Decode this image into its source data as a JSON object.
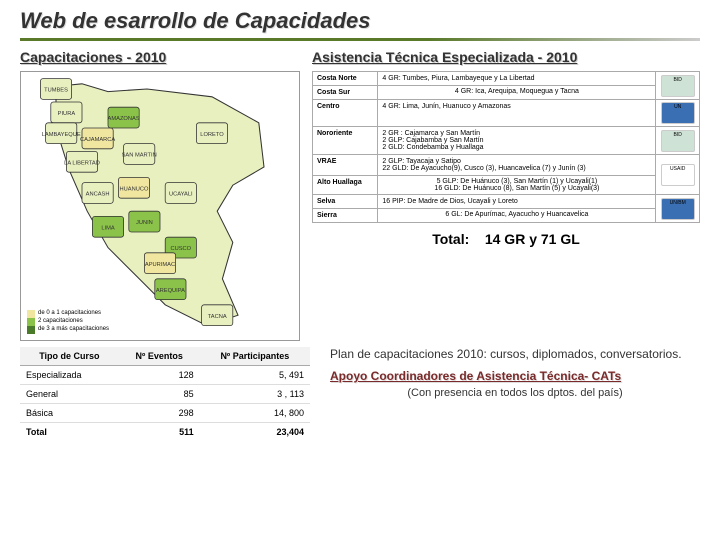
{
  "title": "Web de esarrollo de Capacidades",
  "left_heading": "Capacitaciones - 2010",
  "right_heading": "Asistencia Técnica Especializada - 2010",
  "map": {
    "background": "#ffffff",
    "ocean": "#ffffff",
    "border_color": "#333333",
    "legend": {
      "rows": [
        {
          "color": "#f0e6a0",
          "label": "de 0 a 1 capacitaciones"
        },
        {
          "color": "#8bc34a",
          "label": "2 capacitaciones"
        },
        {
          "color": "#4a7a2a",
          "label": "de 3 a más capacitaciones"
        }
      ]
    },
    "regions": [
      {
        "label": "LORETO",
        "color": "#e8f0c0",
        "tx": 0.7,
        "ty": 0.22
      },
      {
        "label": "TUMBES",
        "color": "#e8f0c0",
        "tx": 0.1,
        "ty": 0.05
      },
      {
        "label": "PIURA",
        "color": "#e8f0c0",
        "tx": 0.14,
        "ty": 0.14
      },
      {
        "label": "CAJAMARCA",
        "color": "#f0e6a0",
        "tx": 0.26,
        "ty": 0.24
      },
      {
        "label": "AMAZONAS",
        "color": "#8bc34a",
        "tx": 0.36,
        "ty": 0.16
      },
      {
        "label": "SAN MARTIN",
        "color": "#e8f0c0",
        "tx": 0.42,
        "ty": 0.3
      },
      {
        "label": "LAMBAYEQUE",
        "color": "#e8f0c0",
        "tx": 0.12,
        "ty": 0.22
      },
      {
        "label": "LA LIBERTAD",
        "color": "#e8f0c0",
        "tx": 0.2,
        "ty": 0.33
      },
      {
        "label": "ANCASH",
        "color": "#e8f0c0",
        "tx": 0.26,
        "ty": 0.45
      },
      {
        "label": "HUANUCO",
        "color": "#f0e6a0",
        "tx": 0.4,
        "ty": 0.43
      },
      {
        "label": "UCAYALI",
        "color": "#e8f0c0",
        "tx": 0.58,
        "ty": 0.45
      },
      {
        "label": "LIMA",
        "color": "#8bc34a",
        "tx": 0.3,
        "ty": 0.58
      },
      {
        "label": "JUNIN",
        "color": "#8bc34a",
        "tx": 0.44,
        "ty": 0.56
      },
      {
        "label": "CUSCO",
        "color": "#8bc34a",
        "tx": 0.58,
        "ty": 0.66
      },
      {
        "label": "APURIMAC",
        "color": "#f0e6a0",
        "tx": 0.5,
        "ty": 0.72
      },
      {
        "label": "AREQUIPA",
        "color": "#8bc34a",
        "tx": 0.54,
        "ty": 0.82
      },
      {
        "label": "TACNA",
        "color": "#e8f0c0",
        "tx": 0.72,
        "ty": 0.92
      }
    ]
  },
  "asistencia": [
    {
      "region": "Costa Norte",
      "detail": "4 GR:   Tumbes, Piura, Lambayeque y La Libertad",
      "logo": {
        "bg": "#cfe2d6",
        "text": "BID"
      }
    },
    {
      "region": "Costa Sur",
      "detail": "4 GR:   Ica, Arequipa, Moquegua y Tacna",
      "merge_up_logo": true
    },
    {
      "region": "Centro",
      "detail": "4 GR:   Lima, Junín, Huanuco y Amazonas",
      "logo": {
        "bg": "#3b6fb3",
        "text": "UN"
      }
    },
    {
      "region": "Nororiente",
      "detail": "2 GR :  Cajamarca y San Martín\n2 GLP:  Cajabamba y San Martín\n2 GLD:  Condebamba y Huallaga",
      "logo": {
        "bg": "#cfe2d6",
        "text": "BID"
      }
    },
    {
      "region": "VRAE",
      "detail": "2 GLP:  Tayacaja y Satipo\n22 GLD: De Ayacucho(9), Cusco (3), Huancavelica (7) y Junín (3)",
      "logo": {
        "bg": "#ffffff",
        "text": "USAID"
      }
    },
    {
      "region": "Alto Huallaga",
      "detail": "5 GLP:  De Huánuco (3), San Martín (1) y Ucayali(1)\n16 GLD: De Huánuco (8), San Martín (5) y Ucayali(3)",
      "merge_up_logo": true
    },
    {
      "region": "Selva",
      "detail": "16 PIP: De Madre de Dios, Ucayali y Loreto",
      "logo": {
        "bg": "#3b6fb3",
        "text": "UN/BM"
      }
    },
    {
      "region": "Sierra",
      "detail": "6 GL:   De Apurímac, Ayacucho y Huancavelica",
      "merge_up_logo": true
    }
  ],
  "totals_label": "Total:",
  "totals_value": "14 GR y 71 GL",
  "curso": {
    "cols": [
      "Tipo de Curso",
      "Nº Eventos",
      "Nº Participantes"
    ],
    "rows": [
      [
        "Especializada",
        "128",
        "5, 491"
      ],
      [
        "General",
        "85",
        "3 , 113"
      ],
      [
        "Básica",
        "298",
        "14, 800"
      ],
      [
        "Total",
        "511",
        "23,404"
      ]
    ]
  },
  "notes": {
    "plan": "Plan de capacitaciones 2010: cursos, diplomados, conversatorios.",
    "link": "Apoyo Coordinadores de Asistencia Técnica- CATs",
    "sub": "(Con presencia en todos los dptos. del país)"
  }
}
